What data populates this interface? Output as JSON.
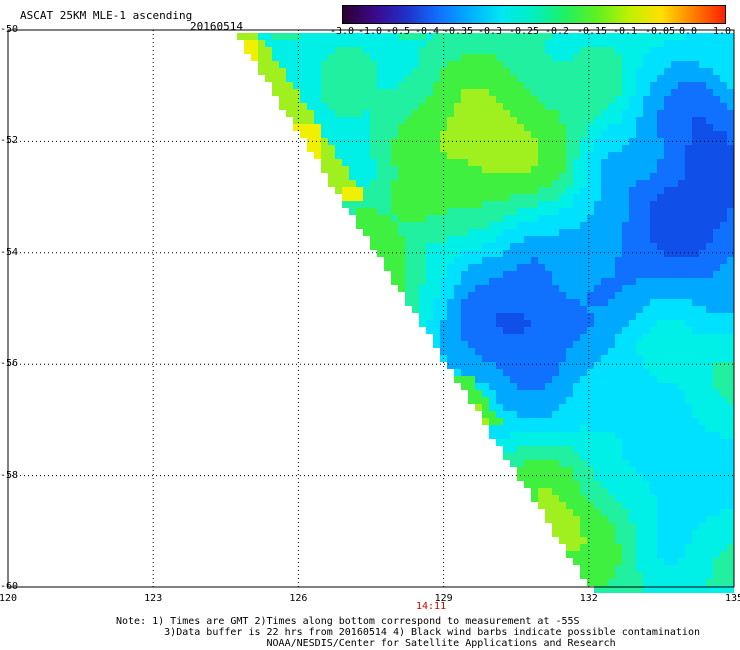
{
  "header": {
    "title": "ASCAT 25KM MLE-1 ascending",
    "date": "20160514"
  },
  "colorbar": {
    "labels": [
      "-3.0",
      "-1.0",
      "-0.5",
      "-0.4",
      "-0.35",
      "-0.3",
      "-0.25",
      "-0.2",
      "-0.15",
      "-0.1",
      "-0.05",
      "0.0",
      "1.0"
    ],
    "colors": [
      "#2a0030",
      "#3a0a8a",
      "#2030c8",
      "#1070ff",
      "#00b0ff",
      "#00e8f0",
      "#00f0c0",
      "#20f060",
      "#60f020",
      "#c0f000",
      "#ffe000",
      "#ff8000",
      "#ff2000"
    ]
  },
  "axes": {
    "lat_labels": [
      "-50",
      "-52",
      "-54",
      "-56",
      "-58",
      "-60"
    ],
    "lon_labels": [
      "120",
      "123",
      "126",
      "129",
      "132",
      "135"
    ],
    "lat_range": [
      -60,
      -50
    ],
    "lon_range": [
      120,
      135
    ]
  },
  "time_marker": "14:11",
  "notes": [
    "Note: 1) Times are GMT 2)Times along bottom correspond to measurement at -55S",
    "        3)Data buffer is 22 hrs from 20160514 4) Black wind barbs indicate possible contamination",
    "                         NOAA/NESDIS/Center for Satellite Applications and Research"
  ]
}
